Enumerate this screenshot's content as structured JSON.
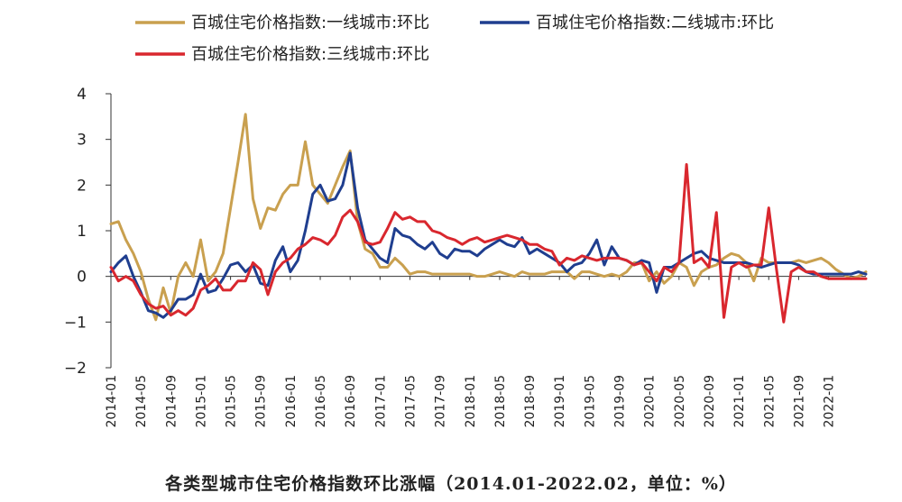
{
  "chart_data": {
    "type": "line",
    "title": "",
    "caption": "各类型城市住宅价格指数环比涨幅（2014.01-2022.02，单位：%）",
    "xlabel": "",
    "ylabel": "",
    "ylim": [
      -2,
      4
    ],
    "y_ticks": [
      "4",
      "3",
      "2",
      "1",
      "0",
      "−1",
      "−2"
    ],
    "x_tick_labels": [
      "2014-01",
      "2014-05",
      "2014-09",
      "2015-01",
      "2015-05",
      "2015-09",
      "2016-01",
      "2016-05",
      "2016-09",
      "2017-01",
      "2017-05",
      "2017-09",
      "2018-01",
      "2018-05",
      "2018-09",
      "2019-01",
      "2019-05",
      "2019-09",
      "2020-01",
      "2020-05",
      "2020-09",
      "2021-01",
      "2021-05",
      "2021-09",
      "2022-01"
    ],
    "x_start": "2014-01",
    "x_end": "2022-02",
    "legend_position": "top",
    "grid": false,
    "series": [
      {
        "name": "百城住宅价格指数:一线城市:环比",
        "color": "#C9A04F",
        "values": [
          1.15,
          1.2,
          0.8,
          0.5,
          0.1,
          -0.5,
          -0.95,
          -0.25,
          -0.8,
          0.0,
          0.3,
          0.0,
          0.8,
          -0.1,
          0.1,
          0.5,
          1.5,
          2.5,
          3.55,
          1.7,
          1.05,
          1.5,
          1.45,
          1.8,
          2.0,
          2.0,
          2.95,
          2.0,
          1.8,
          1.6,
          2.0,
          2.4,
          2.75,
          1.2,
          0.6,
          0.5,
          0.2,
          0.2,
          0.4,
          0.25,
          0.05,
          0.1,
          0.1,
          0.05,
          0.05,
          0.05,
          0.05,
          0.05,
          0.05,
          0.0,
          0.0,
          0.05,
          0.1,
          0.05,
          0.0,
          0.1,
          0.05,
          0.05,
          0.05,
          0.1,
          0.1,
          0.1,
          -0.05,
          0.1,
          0.1,
          0.05,
          0.0,
          0.05,
          0.0,
          0.1,
          0.3,
          0.3,
          -0.1,
          0.1,
          -0.15,
          0.0,
          0.3,
          0.2,
          -0.2,
          0.1,
          0.2,
          0.25,
          0.4,
          0.5,
          0.45,
          0.3,
          -0.1,
          0.4,
          0.3,
          0.3,
          0.3,
          0.3,
          0.35,
          0.3,
          0.35,
          0.4,
          0.3,
          0.15,
          0.05,
          -0.05,
          0.0,
          0.1
        ]
      },
      {
        "name": "百城住宅价格指数:二线城市:环比",
        "color": "#1F3E8F",
        "values": [
          0.1,
          0.3,
          0.45,
          0.0,
          -0.35,
          -0.75,
          -0.8,
          -0.9,
          -0.75,
          -0.5,
          -0.5,
          -0.4,
          0.05,
          -0.35,
          -0.3,
          -0.05,
          0.25,
          0.3,
          0.1,
          0.25,
          -0.15,
          -0.2,
          0.35,
          0.65,
          0.1,
          0.35,
          1.0,
          1.8,
          2.0,
          1.65,
          1.7,
          2.0,
          2.7,
          1.5,
          0.8,
          0.6,
          0.4,
          0.3,
          1.05,
          0.9,
          0.85,
          0.7,
          0.6,
          0.75,
          0.5,
          0.4,
          0.6,
          0.55,
          0.55,
          0.45,
          0.6,
          0.7,
          0.8,
          0.7,
          0.65,
          0.85,
          0.5,
          0.6,
          0.5,
          0.4,
          0.3,
          0.1,
          0.25,
          0.3,
          0.5,
          0.8,
          0.25,
          0.65,
          0.4,
          0.35,
          0.25,
          0.35,
          0.3,
          -0.35,
          0.2,
          0.2,
          0.3,
          0.4,
          0.5,
          0.55,
          0.4,
          0.35,
          0.3,
          0.3,
          0.3,
          0.3,
          0.25,
          0.2,
          0.25,
          0.3,
          0.3,
          0.3,
          0.25,
          0.1,
          0.05,
          0.05,
          0.05,
          0.05,
          0.05,
          0.05,
          0.1,
          0.05
        ]
      },
      {
        "name": "百城住宅价格指数:三线城市:环比",
        "color": "#D9272E",
        "values": [
          0.2,
          -0.1,
          0.0,
          -0.1,
          -0.4,
          -0.6,
          -0.7,
          -0.65,
          -0.85,
          -0.75,
          -0.85,
          -0.7,
          -0.3,
          -0.2,
          -0.05,
          -0.3,
          -0.3,
          -0.1,
          -0.1,
          0.3,
          0.15,
          -0.4,
          0.1,
          0.3,
          0.4,
          0.6,
          0.7,
          0.85,
          0.8,
          0.7,
          0.9,
          1.3,
          1.45,
          1.2,
          0.75,
          0.7,
          0.75,
          1.05,
          1.4,
          1.25,
          1.3,
          1.2,
          1.2,
          1.0,
          0.95,
          0.85,
          0.8,
          0.7,
          0.8,
          0.85,
          0.75,
          0.8,
          0.85,
          0.9,
          0.85,
          0.8,
          0.7,
          0.7,
          0.6,
          0.55,
          0.25,
          0.4,
          0.35,
          0.45,
          0.4,
          0.35,
          0.4,
          0.4,
          0.4,
          0.35,
          0.25,
          0.3,
          0.1,
          -0.1,
          0.2,
          0.1,
          0.3,
          2.45,
          0.3,
          0.4,
          0.2,
          1.4,
          -0.9,
          0.2,
          0.3,
          0.2,
          0.25,
          0.25,
          1.5,
          0.2,
          -1.0,
          0.1,
          0.2,
          0.1,
          0.1,
          0.0,
          -0.05,
          -0.05,
          -0.05,
          -0.05,
          -0.05,
          -0.05
        ]
      }
    ]
  }
}
